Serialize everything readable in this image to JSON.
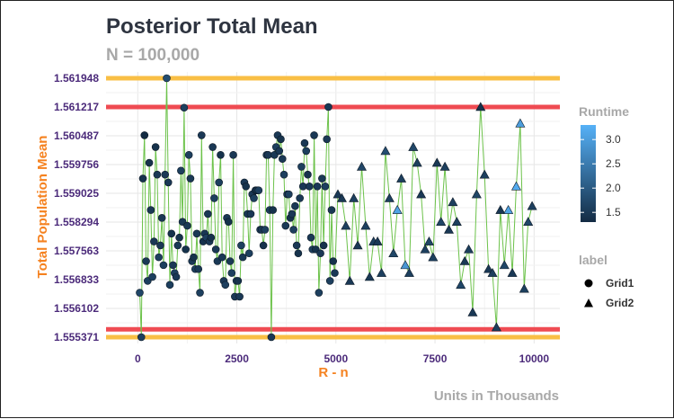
{
  "chart_data": {
    "type": "scatter",
    "title": "Posterior Total Mean",
    "subtitle": "N = 100,000",
    "xlabel": "R - n",
    "ylabel": "Total Population Mean",
    "caption": "Units in Thousands",
    "xlim": [
      -800,
      10650
    ],
    "ylim": [
      1.55521,
      1.562108
    ],
    "x_ticks": [
      0,
      2500,
      5000,
      7500,
      10000
    ],
    "x_tick_labels": [
      "0",
      "2500",
      "5000",
      "7500",
      "10000"
    ],
    "y_ticks": [
      1.555371,
      1.556102,
      1.556833,
      1.557563,
      1.558294,
      1.559025,
      1.559756,
      1.560487,
      1.561217,
      1.561948
    ],
    "y_tick_labels": [
      "1.555371",
      "1.556102",
      "1.556833",
      "1.557563",
      "1.558294",
      "1.559025",
      "1.559756",
      "1.560487",
      "1.561217",
      "1.561948"
    ],
    "grid": true,
    "hlines": [
      {
        "y": 1.561948,
        "color": "#f9bf45"
      },
      {
        "y": 1.555371,
        "color": "#f9bf45"
      },
      {
        "y": 1.561217,
        "color": "#ef4b52"
      },
      {
        "y": 1.555571,
        "color": "#ef4b52"
      }
    ],
    "line_color": "#6cc24a",
    "colors": {
      "low": "#132b43",
      "high": "#56b1f7",
      "title": "#2e3440",
      "subtitle": "#a8a8a8",
      "xlabel": "#f58220",
      "ylabel": "#f58220",
      "tick_label": "#4b2a7a",
      "legend_title": "#a8a8a8"
    },
    "legend": {
      "position": "right",
      "color_title": "Runtime",
      "color_range": [
        1.3,
        3.3
      ],
      "color_ticks": [
        1.5,
        2.0,
        2.5,
        3.0
      ],
      "color_tick_labels": [
        "1.5",
        "2.0",
        "2.5",
        "3.0"
      ],
      "shape_title": "label",
      "shape_entries": [
        {
          "label": "Grid1",
          "shape": "circle"
        },
        {
          "label": "Grid2",
          "shape": "triangle"
        }
      ]
    },
    "series": [
      {
        "name": "Grid1",
        "shape": "circle",
        "x": [
          50,
          90,
          130,
          170,
          210,
          250,
          290,
          330,
          370,
          410,
          450,
          490,
          530,
          570,
          610,
          650,
          690,
          730,
          770,
          810,
          850,
          890,
          930,
          970,
          1010,
          1050,
          1090,
          1130,
          1170,
          1210,
          1250,
          1290,
          1330,
          1370,
          1410,
          1450,
          1490,
          1530,
          1570,
          1610,
          1650,
          1690,
          1730,
          1770,
          1810,
          1850,
          1890,
          1930,
          1970,
          2010,
          2050,
          2090,
          2130,
          2170,
          2210,
          2250,
          2290,
          2330,
          2370,
          2410,
          2450,
          2490,
          2530,
          2570,
          2610,
          2650,
          2690,
          2730,
          2770,
          2810,
          2850,
          2890,
          2930,
          2970,
          3010,
          3050,
          3090,
          3130,
          3170,
          3210,
          3250,
          3290,
          3330,
          3370,
          3410,
          3450,
          3490,
          3530,
          3570,
          3610,
          3650,
          3690,
          3730,
          3770,
          3810,
          3850,
          3890,
          3930,
          3970,
          4010,
          4050,
          4090,
          4130,
          4170,
          4210,
          4250,
          4290,
          4330,
          4370,
          4410,
          4450,
          4490,
          4530,
          4570,
          4610,
          4650,
          4690,
          4730,
          4770,
          4810,
          4850,
          4890,
          4930,
          4970
        ],
        "y": [
          1.5565,
          1.55537,
          1.5594,
          1.5605,
          1.5573,
          1.5568,
          1.5598,
          1.5586,
          1.5569,
          1.5578,
          1.5602,
          1.5595,
          1.5574,
          1.5577,
          1.5584,
          1.5572,
          1.5595,
          1.561948,
          1.5593,
          1.5567,
          1.558,
          1.5572,
          1.557,
          1.5569,
          1.5577,
          1.5579,
          1.5596,
          1.5583,
          1.5612,
          1.5576,
          1.5582,
          1.56,
          1.5594,
          1.5573,
          1.5574,
          1.5571,
          1.558,
          1.5571,
          1.5565,
          1.5605,
          1.5578,
          1.558,
          1.5579,
          1.5585,
          1.5578,
          1.5579,
          1.5602,
          1.5589,
          1.5576,
          1.5573,
          1.5593,
          1.56,
          1.5574,
          1.5568,
          1.5567,
          1.5584,
          1.5583,
          1.5573,
          1.557,
          1.56,
          1.5564,
          1.5568,
          1.5568,
          1.5564,
          1.5577,
          1.5574,
          1.5593,
          1.5592,
          1.5585,
          1.5575,
          1.5585,
          1.559,
          1.5589,
          1.5591,
          1.5591,
          1.5591,
          1.5581,
          1.5581,
          1.5577,
          1.5581,
          1.56,
          1.56,
          1.5586,
          1.55537,
          1.5586,
          1.56,
          1.5602,
          1.5605,
          1.5601,
          1.5604,
          1.5599,
          1.5595,
          1.5582,
          1.559,
          1.559,
          1.5584,
          1.5585,
          1.5581,
          1.5587,
          1.5577,
          1.5575,
          1.5589,
          1.5597,
          1.5592,
          1.5603,
          1.5601,
          1.5595,
          1.5592,
          1.5579,
          1.5576,
          1.5605,
          1.5576,
          1.5592,
          1.5565,
          1.5575,
          1.5594,
          1.5577,
          1.5592,
          1.5604,
          1.561217,
          1.5568,
          1.5586,
          1.5573,
          1.557
        ],
        "runtime": [
          1.7,
          1.6,
          1.4,
          1.3,
          1.5,
          1.6,
          1.4,
          1.5,
          1.6,
          1.5,
          1.4,
          1.5,
          1.6,
          1.5,
          1.5,
          1.6,
          1.5,
          1.8,
          1.5,
          1.6,
          1.4,
          1.5,
          1.6,
          1.5,
          1.5,
          1.4,
          1.6,
          1.5,
          1.6,
          1.4,
          1.5,
          1.6,
          1.5,
          1.5,
          1.4,
          1.6,
          1.5,
          1.5,
          1.6,
          1.5,
          1.4,
          1.5,
          1.6,
          1.5,
          1.5,
          1.4,
          1.5,
          1.6,
          1.5,
          1.5,
          1.6,
          1.4,
          1.5,
          1.5,
          1.6,
          1.5,
          1.4,
          1.5,
          1.6,
          1.5,
          1.5,
          1.6,
          1.4,
          1.5,
          1.6,
          1.5,
          1.5,
          1.4,
          1.5,
          1.6,
          1.5,
          1.5,
          1.6,
          1.4,
          1.5,
          1.6,
          1.5,
          1.5,
          1.4,
          1.6,
          1.5,
          1.5,
          1.6,
          1.5,
          1.4,
          1.5,
          1.6,
          1.5,
          1.5,
          1.4,
          1.5,
          1.6,
          1.5,
          1.5,
          1.6,
          1.4,
          1.5,
          1.6,
          1.5,
          1.5,
          1.4,
          1.5,
          1.6,
          1.5,
          1.5,
          1.6,
          1.4,
          1.5,
          1.5,
          1.6,
          1.5,
          1.4,
          1.5,
          1.6,
          1.5,
          1.5,
          1.4,
          1.6,
          1.5,
          1.5,
          1.6,
          1.5,
          1.4,
          1.5
        ]
      },
      {
        "name": "Grid2",
        "shape": "triangle",
        "x": [
          5050,
          5150,
          5250,
          5350,
          5450,
          5550,
          5650,
          5750,
          5850,
          5950,
          6050,
          6150,
          6250,
          6350,
          6450,
          6550,
          6650,
          6750,
          6850,
          6950,
          7050,
          7150,
          7250,
          7350,
          7450,
          7550,
          7650,
          7750,
          7850,
          7950,
          8050,
          8150,
          8250,
          8350,
          8450,
          8550,
          8650,
          8750,
          8850,
          8950,
          9050,
          9150,
          9250,
          9350,
          9450,
          9550,
          9650,
          9750,
          9850,
          9950
        ],
        "y": [
          1.559,
          1.5589,
          1.5582,
          1.5568,
          1.5589,
          1.5577,
          1.5597,
          1.5582,
          1.5569,
          1.5578,
          1.5578,
          1.557,
          1.5601,
          1.5589,
          1.5575,
          1.5586,
          1.5594,
          1.5572,
          1.557,
          1.5602,
          1.5598,
          1.559,
          1.5576,
          1.5578,
          1.5574,
          1.5598,
          1.5583,
          1.5597,
          1.5581,
          1.5588,
          1.5583,
          1.5567,
          1.5573,
          1.5576,
          1.556,
          1.559,
          1.561217,
          1.5595,
          1.5571,
          1.557,
          1.55562,
          1.5586,
          1.5572,
          1.5586,
          1.557,
          1.5592,
          1.5608,
          1.5566,
          1.5583,
          1.5587
        ],
        "runtime": [
          1.5,
          1.5,
          1.6,
          1.5,
          1.6,
          1.5,
          1.7,
          1.6,
          1.5,
          1.6,
          1.5,
          1.6,
          1.8,
          1.6,
          1.7,
          3.1,
          1.6,
          2.9,
          1.6,
          1.7,
          1.6,
          1.5,
          1.6,
          1.7,
          1.6,
          1.5,
          1.7,
          1.6,
          1.5,
          1.6,
          1.6,
          1.7,
          1.5,
          1.6,
          1.5,
          1.7,
          1.4,
          1.6,
          1.5,
          1.6,
          1.6,
          1.5,
          1.7,
          3.1,
          1.5,
          3.2,
          3.0,
          1.6,
          1.7,
          1.6
        ]
      }
    ]
  }
}
